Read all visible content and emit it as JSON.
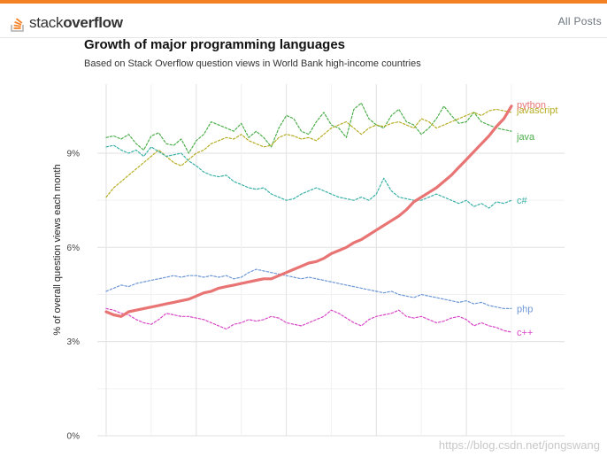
{
  "header": {
    "logo_light": "stack",
    "logo_bold": "overflow",
    "all_posts": "All Posts"
  },
  "watermark": "https://blog.csdn.net/jongswang",
  "colors": {
    "accent": "#f48024",
    "grid": "#e5e5e5"
  },
  "chart_data": {
    "type": "line",
    "title": "Growth of major programming languages",
    "subtitle": "Based on Stack Overflow question views in World Bank high-income countries",
    "xlabel": "",
    "ylabel": "% of overall question views each month",
    "ylim": [
      0,
      11.2
    ],
    "yticks": [
      0,
      3,
      6,
      9
    ],
    "ytick_labels": [
      "0%",
      "3%",
      "6%",
      "9%"
    ],
    "x_count": 55,
    "x_grid_every": 12,
    "series": [
      {
        "name": "java",
        "color": "#4cae4c",
        "dashed": true,
        "width": 1.2,
        "values": [
          9.5,
          9.55,
          9.45,
          9.6,
          9.3,
          9.1,
          9.55,
          9.65,
          9.3,
          9.25,
          9.45,
          9.0,
          9.4,
          9.6,
          10.0,
          9.9,
          9.8,
          9.7,
          9.95,
          9.5,
          9.7,
          9.5,
          9.2,
          9.8,
          10.2,
          10.1,
          9.7,
          9.6,
          10.0,
          10.3,
          9.9,
          9.8,
          9.5,
          10.4,
          10.6,
          10.1,
          9.9,
          9.8,
          10.2,
          10.4,
          10.0,
          9.9,
          9.6,
          9.8,
          10.1,
          10.5,
          10.2,
          9.95,
          10.0,
          10.3,
          10.0,
          9.9,
          9.8,
          9.75,
          9.7
        ]
      },
      {
        "name": "javascript",
        "color": "#b5ad24",
        "dashed": true,
        "width": 1.2,
        "values": [
          7.6,
          7.9,
          8.1,
          8.3,
          8.5,
          8.7,
          8.9,
          9.1,
          8.9,
          8.7,
          8.6,
          8.8,
          9.0,
          9.1,
          9.3,
          9.4,
          9.5,
          9.45,
          9.6,
          9.4,
          9.3,
          9.2,
          9.25,
          9.5,
          9.6,
          9.55,
          9.45,
          9.5,
          9.4,
          9.6,
          9.8,
          9.9,
          10.0,
          9.8,
          9.6,
          9.8,
          9.9,
          9.85,
          9.95,
          10.0,
          9.9,
          9.8,
          10.1,
          10.0,
          9.8,
          9.9,
          10.0,
          10.1,
          10.2,
          10.3,
          10.2,
          10.35,
          10.4,
          10.35,
          10.3
        ]
      },
      {
        "name": "c#",
        "color": "#3ab1a6",
        "dashed": true,
        "width": 1.2,
        "values": [
          9.2,
          9.25,
          9.1,
          9.0,
          9.1,
          8.9,
          9.2,
          9.05,
          8.9,
          8.95,
          9.0,
          8.75,
          8.6,
          8.4,
          8.3,
          8.25,
          8.3,
          8.1,
          8.0,
          7.9,
          7.85,
          7.9,
          7.7,
          7.6,
          7.5,
          7.55,
          7.7,
          7.8,
          7.9,
          7.8,
          7.7,
          7.6,
          7.55,
          7.5,
          7.6,
          7.5,
          7.7,
          8.2,
          7.8,
          7.6,
          7.55,
          7.5,
          7.5,
          7.6,
          7.7,
          7.6,
          7.5,
          7.4,
          7.5,
          7.3,
          7.4,
          7.25,
          7.45,
          7.4,
          7.5
        ]
      },
      {
        "name": "php",
        "color": "#6d97d6",
        "dashed": true,
        "width": 1.2,
        "values": [
          4.6,
          4.7,
          4.8,
          4.75,
          4.85,
          4.9,
          4.95,
          5.0,
          5.05,
          5.1,
          5.05,
          5.1,
          5.1,
          5.05,
          5.1,
          5.05,
          5.1,
          5.0,
          5.05,
          5.2,
          5.3,
          5.25,
          5.2,
          5.15,
          5.1,
          5.05,
          5.0,
          5.05,
          5.0,
          4.95,
          4.9,
          4.85,
          4.8,
          4.75,
          4.7,
          4.65,
          4.6,
          4.55,
          4.6,
          4.5,
          4.45,
          4.4,
          4.5,
          4.45,
          4.4,
          4.35,
          4.3,
          4.25,
          4.3,
          4.2,
          4.25,
          4.15,
          4.1,
          4.05,
          4.05
        ]
      },
      {
        "name": "c++",
        "color": "#d946c8",
        "dashed": true,
        "width": 1.2,
        "values": [
          4.05,
          4.0,
          3.9,
          3.85,
          3.7,
          3.6,
          3.55,
          3.7,
          3.9,
          3.85,
          3.8,
          3.8,
          3.75,
          3.7,
          3.6,
          3.5,
          3.4,
          3.55,
          3.6,
          3.7,
          3.65,
          3.7,
          3.8,
          3.75,
          3.6,
          3.55,
          3.5,
          3.6,
          3.7,
          3.8,
          4.0,
          3.9,
          3.75,
          3.6,
          3.5,
          3.7,
          3.8,
          3.85,
          3.9,
          4.0,
          3.8,
          3.75,
          3.8,
          3.7,
          3.6,
          3.65,
          3.75,
          3.8,
          3.7,
          3.5,
          3.6,
          3.5,
          3.45,
          3.35,
          3.3
        ]
      },
      {
        "name": "python",
        "color": "#e87474",
        "dashed": false,
        "width": 3.2,
        "values": [
          3.95,
          3.85,
          3.8,
          3.95,
          4.0,
          4.05,
          4.1,
          4.15,
          4.2,
          4.25,
          4.3,
          4.35,
          4.45,
          4.55,
          4.6,
          4.7,
          4.75,
          4.8,
          4.85,
          4.9,
          4.95,
          5.0,
          5.0,
          5.1,
          5.2,
          5.3,
          5.4,
          5.5,
          5.55,
          5.65,
          5.8,
          5.9,
          6.0,
          6.15,
          6.25,
          6.4,
          6.55,
          6.7,
          6.85,
          7.0,
          7.2,
          7.45,
          7.6,
          7.75,
          7.9,
          8.1,
          8.3,
          8.55,
          8.8,
          9.05,
          9.3,
          9.55,
          9.85,
          10.1,
          10.5
        ]
      }
    ]
  }
}
